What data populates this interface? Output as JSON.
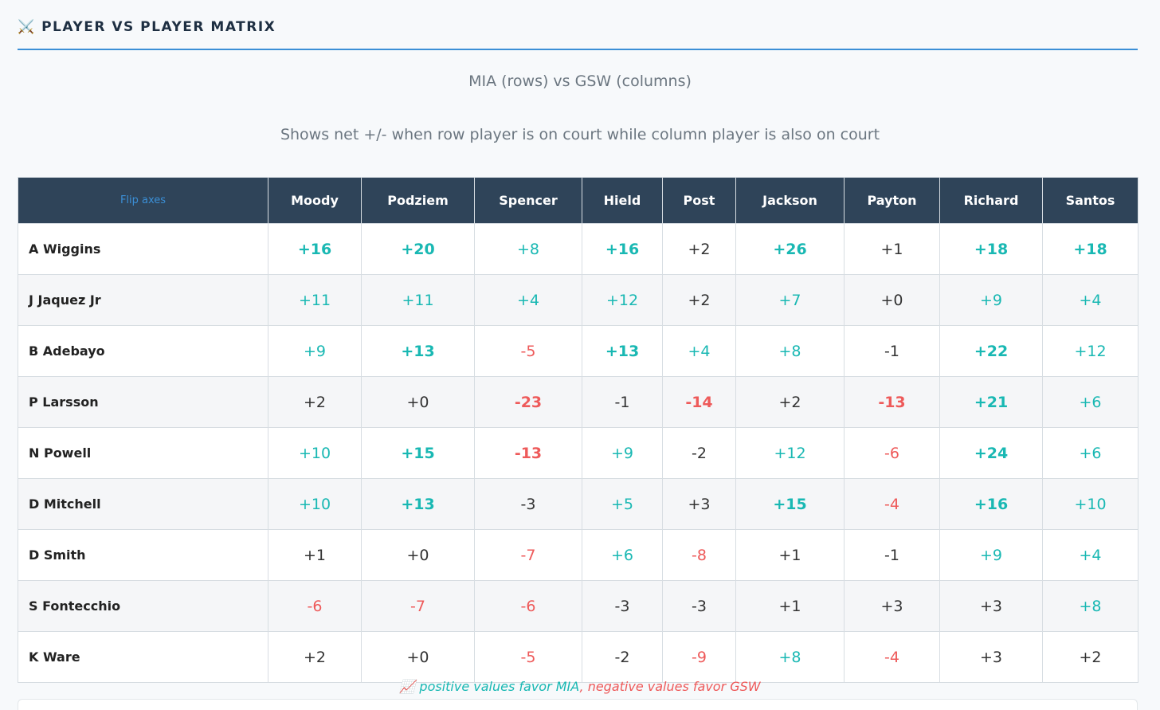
{
  "header": {
    "title": "PLAYER VS PLAYER MATRIX"
  },
  "subtitle": "MIA (rows) vs GSW (columns)",
  "description": "Shows net +/- when row player is on court while column player is also on court",
  "table": {
    "corner": "Flip axes",
    "columns": [
      "Moody",
      "Podziem",
      "Spencer",
      "Hield",
      "Post",
      "Jackson",
      "Payton",
      "Richard",
      "Santos"
    ],
    "rows": [
      {
        "player": "A Wiggins",
        "cells": [
          "+16",
          "+20",
          "+8",
          "+16",
          "+2",
          "+26",
          "+1",
          "+18",
          "+18"
        ]
      },
      {
        "player": "J Jaquez Jr",
        "cells": [
          "+11",
          "+11",
          "+4",
          "+12",
          "+2",
          "+7",
          "+0",
          "+9",
          "+4"
        ]
      },
      {
        "player": "B Adebayo",
        "cells": [
          "+9",
          "+13",
          "-5",
          "+13",
          "+4",
          "+8",
          "-1",
          "+22",
          "+12"
        ]
      },
      {
        "player": "P Larsson",
        "cells": [
          "+2",
          "+0",
          "-23",
          "-1",
          "-14",
          "+2",
          "-13",
          "+21",
          "+6"
        ]
      },
      {
        "player": "N Powell",
        "cells": [
          "+10",
          "+15",
          "-13",
          "+9",
          "-2",
          "+12",
          "-6",
          "+24",
          "+6"
        ]
      },
      {
        "player": "D Mitchell",
        "cells": [
          "+10",
          "+13",
          "-3",
          "+5",
          "+3",
          "+15",
          "-4",
          "+16",
          "+10"
        ]
      },
      {
        "player": "D Smith",
        "cells": [
          "+1",
          "+0",
          "-7",
          "+6",
          "-8",
          "+1",
          "-1",
          "+9",
          "+4"
        ]
      },
      {
        "player": "S Fontecchio",
        "cells": [
          "-6",
          "-7",
          "-6",
          "-3",
          "-3",
          "+1",
          "+3",
          "+3",
          "+8"
        ]
      },
      {
        "player": "K Ware",
        "cells": [
          "+2",
          "+0",
          "-5",
          "-2",
          "-9",
          "+8",
          "-4",
          "+3",
          "+2"
        ]
      }
    ]
  },
  "legend": {
    "positive": "positive values favor MIA",
    "separator": ",",
    "negative": "negative values favor GSW"
  }
}
